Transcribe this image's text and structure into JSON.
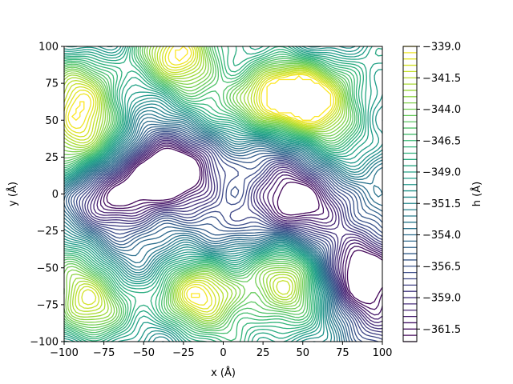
{
  "chart_data": {
    "type": "contour",
    "xlabel": "x (Å)",
    "ylabel": "y (Å)",
    "xlim": [
      -100,
      100
    ],
    "ylim": [
      -100,
      100
    ],
    "x_ticks": [
      -100,
      -75,
      -50,
      -25,
      0,
      25,
      50,
      75,
      100
    ],
    "y_ticks": [
      -100,
      -75,
      -50,
      -25,
      0,
      25,
      50,
      75,
      100
    ],
    "colorbar": {
      "label": "h (Å)",
      "range": [
        -362.5,
        -339.0
      ],
      "ticks": [
        "−339.0",
        "−341.5",
        "−344.0",
        "−346.5",
        "−349.0",
        "−351.5",
        "−354.0",
        "−356.5",
        "−359.0",
        "−361.5"
      ],
      "tick_values": [
        -339.0,
        -341.5,
        -344.0,
        -346.5,
        -349.0,
        -351.5,
        -354.0,
        -356.5,
        -359.0,
        -361.5
      ],
      "level_step": 0.5,
      "colormap": "viridis"
    },
    "surface_features": [
      {
        "kind": "minimum",
        "x": 38,
        "y": 0,
        "h": -362.5
      },
      {
        "kind": "minimum",
        "x": -30,
        "y": 15,
        "h": -361.0
      },
      {
        "kind": "minimum",
        "x": -65,
        "y": -2,
        "h": -360.5
      },
      {
        "kind": "minimum",
        "x": 90,
        "y": -38,
        "h": -359.0
      },
      {
        "kind": "minimum",
        "x": 90,
        "y": -75,
        "h": -359.5
      },
      {
        "kind": "maximum",
        "x": 30,
        "y": 63,
        "h": -339.5
      },
      {
        "kind": "maximum",
        "x": 65,
        "y": 60,
        "h": -340.5
      },
      {
        "kind": "maximum",
        "x": -25,
        "y": 92,
        "h": -340.0
      },
      {
        "kind": "maximum",
        "x": 40,
        "y": -65,
        "h": -339.5
      },
      {
        "kind": "maximum",
        "x": -15,
        "y": -72,
        "h": -341.0
      },
      {
        "kind": "maximum",
        "x": -88,
        "y": -68,
        "h": -341.0
      },
      {
        "kind": "maximum",
        "x": -88,
        "y": 62,
        "h": -342.0
      },
      {
        "kind": "maximum",
        "x": -97,
        "y": 32,
        "h": -343.0
      }
    ]
  }
}
